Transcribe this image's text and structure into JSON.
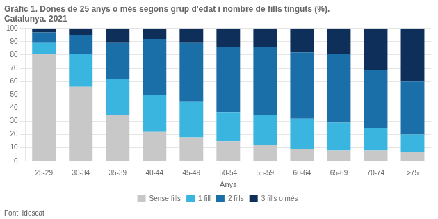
{
  "chart_data": {
    "type": "bar",
    "title": "Gràfic 1. Dones de 25 anys o més segons grup d'edat i nombre de fills tinguts (%).",
    "subtitle": "Catalunya. 2021",
    "xlabel": "Anys",
    "annotations": [
      "Font: Idescat"
    ],
    "categories": [
      "25-29",
      "30-34",
      "35-39",
      "40-44",
      "45-49",
      "50-54",
      "55-59",
      "60-64",
      "65-69",
      "70-74",
      ">75"
    ],
    "series": [
      {
        "name": "Sense fills",
        "color": "#c8c8c8",
        "values": [
          81,
          56,
          35,
          22,
          18,
          15,
          12,
          9,
          8,
          8,
          7
        ]
      },
      {
        "name": "1 fill",
        "color": "#3ab5e0",
        "values": [
          8,
          25,
          27,
          28,
          27,
          22,
          23,
          23,
          21,
          17,
          13
        ]
      },
      {
        "name": "2 fills",
        "color": "#1a6fa8",
        "values": [
          8,
          14,
          27,
          42,
          44,
          49,
          51,
          50,
          52,
          44,
          40
        ]
      },
      {
        "name": "3 fills o més",
        "color": "#0d2f5a",
        "values": [
          3,
          5,
          11,
          8,
          11,
          14,
          14,
          18,
          19,
          31,
          40
        ]
      }
    ],
    "stacked": true,
    "ylim": [
      0,
      100
    ],
    "yticks": [
      0,
      10,
      20,
      30,
      40,
      50,
      60,
      70,
      80,
      90,
      100
    ],
    "grid": true,
    "legend": "bottom"
  }
}
